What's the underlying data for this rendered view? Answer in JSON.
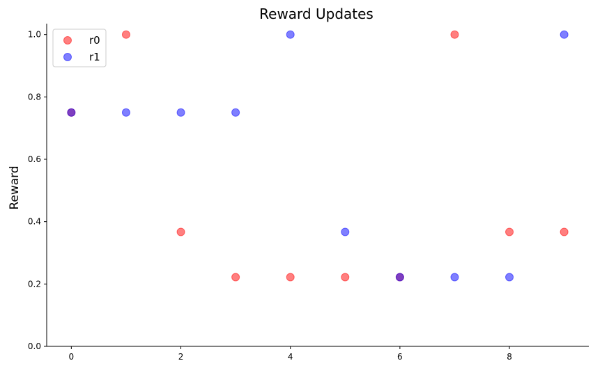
{
  "chart_data": {
    "type": "scatter",
    "title": "Reward Updates",
    "xlabel": "",
    "ylabel": "Reward",
    "xlim": [
      -0.45,
      9.45
    ],
    "ylim": [
      0,
      1.035
    ],
    "xticks": [
      0,
      2,
      4,
      6,
      8
    ],
    "xtick_labels": [
      "0",
      "2",
      "4",
      "6",
      "8"
    ],
    "yticks": [
      0.0,
      0.2,
      0.4,
      0.6,
      0.8,
      1.0
    ],
    "ytick_labels": [
      "0.0",
      "0.2",
      "0.4",
      "0.6",
      "0.8",
      "1.0"
    ],
    "grid": false,
    "legend_position": "top-left",
    "series": [
      {
        "name": "r0",
        "color": "#ff0000",
        "x": [
          0,
          1,
          2,
          3,
          4,
          5,
          6,
          7,
          8,
          9
        ],
        "y": [
          0.75,
          1.0,
          0.367,
          0.222,
          0.222,
          0.222,
          0.222,
          1.0,
          0.367,
          0.367
        ]
      },
      {
        "name": "r1",
        "color": "#0000ff",
        "x": [
          0,
          1,
          2,
          3,
          4,
          5,
          6,
          7,
          8,
          9
        ],
        "y": [
          0.75,
          0.75,
          0.75,
          0.75,
          1.0,
          0.367,
          0.222,
          0.222,
          0.222,
          1.0
        ]
      }
    ]
  }
}
